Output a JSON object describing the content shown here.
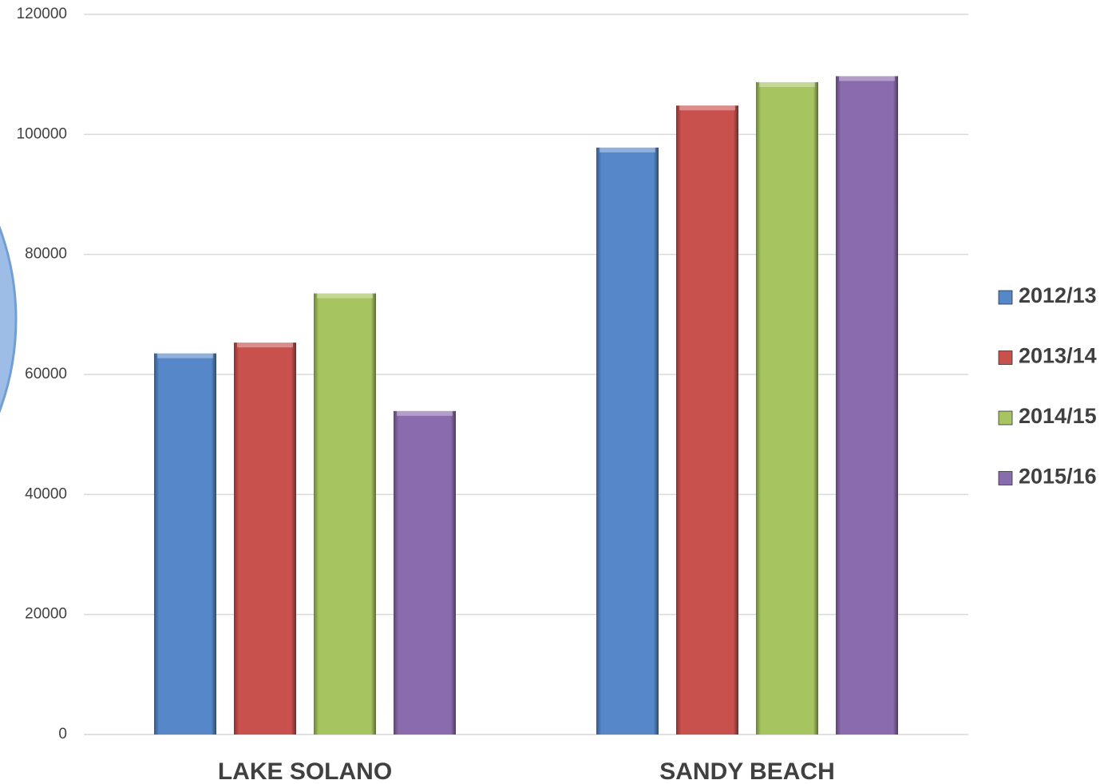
{
  "chart_data": {
    "type": "bar",
    "categories": [
      "LAKE SOLANO",
      "SANDY BEACH"
    ],
    "series": [
      {
        "name": "2012/13",
        "color": "#5587c9",
        "values": [
          63500,
          97800
        ]
      },
      {
        "name": "2013/14",
        "color": "#c8504d",
        "values": [
          65300,
          104800
        ]
      },
      {
        "name": "2014/15",
        "color": "#a6c45f",
        "values": [
          73500,
          108700
        ]
      },
      {
        "name": "2015/16",
        "color": "#8a6bad",
        "values": [
          53900,
          109700
        ]
      }
    ],
    "ylim": [
      0,
      120000
    ],
    "yticks": [
      0,
      20000,
      40000,
      60000,
      80000,
      100000,
      120000
    ],
    "grid": true,
    "legend": "right"
  }
}
